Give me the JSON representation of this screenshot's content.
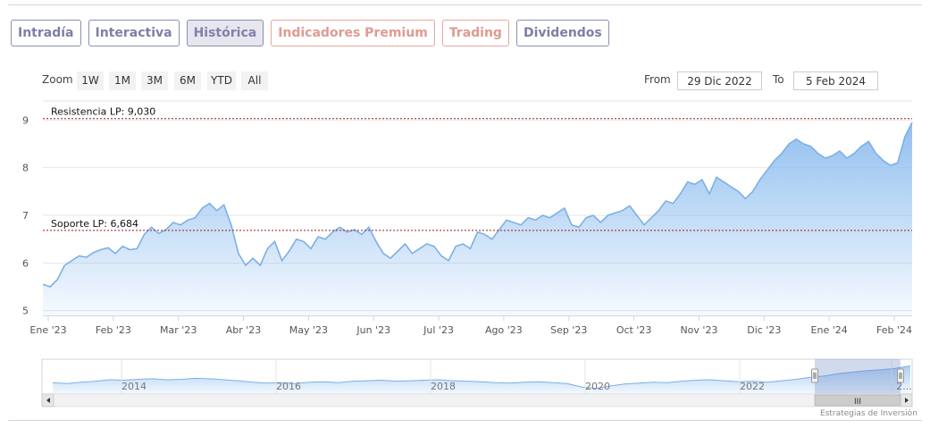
{
  "tabs": [
    {
      "label": "Intradía",
      "active": false,
      "premium": false
    },
    {
      "label": "Interactiva",
      "active": false,
      "premium": false
    },
    {
      "label": "Histórica",
      "active": true,
      "premium": false
    },
    {
      "label": "Indicadores Premium",
      "active": false,
      "premium": true
    },
    {
      "label": "Trading",
      "active": false,
      "premium": true
    },
    {
      "label": "Dividendos",
      "active": false,
      "premium": false
    }
  ],
  "range_selector": {
    "zoom_label": "Zoom",
    "buttons": [
      "1W",
      "1M",
      "3M",
      "6M",
      "YTD",
      "All"
    ],
    "from_label": "From",
    "from_value": "29 Dic 2022",
    "to_label": "To",
    "to_value": "5 Feb 2024"
  },
  "colors": {
    "line": "#7cb0e6",
    "fill_top": "#8cbcef",
    "plot_line": "#9b1c1c",
    "tab_border": "#8a8fb0",
    "tab_premium": "#e09a92"
  },
  "chart_data": {
    "type": "area",
    "title": "",
    "xlabel": "",
    "ylabel": "",
    "ylim": [
      4.9,
      9.4
    ],
    "y_ticks": [
      5,
      6,
      7,
      8,
      9
    ],
    "x_tick_labels": [
      "Ene '23",
      "Feb '23",
      "Mar '23",
      "Abr '23",
      "May '23",
      "Jun '23",
      "Jul '23",
      "Ago '23",
      "Sep '23",
      "Oct '23",
      "Nov '23",
      "Dic '23",
      "Ene '24",
      "Feb '24"
    ],
    "series": [
      {
        "values": [
          5.55,
          5.5,
          5.65,
          5.95,
          6.05,
          6.15,
          6.12,
          6.22,
          6.28,
          6.32,
          6.2,
          6.35,
          6.28,
          6.3,
          6.6,
          6.75,
          6.62,
          6.7,
          6.85,
          6.8,
          6.9,
          6.95,
          7.15,
          7.25,
          7.1,
          7.22,
          6.8,
          6.2,
          5.95,
          6.1,
          5.95,
          6.3,
          6.45,
          6.05,
          6.25,
          6.5,
          6.45,
          6.3,
          6.55,
          6.5,
          6.65,
          6.75,
          6.65,
          6.7,
          6.6,
          6.75,
          6.45,
          6.2,
          6.1,
          6.25,
          6.4,
          6.2,
          6.3,
          6.4,
          6.35,
          6.15,
          6.05,
          6.35,
          6.4,
          6.3,
          6.65,
          6.6,
          6.5,
          6.7,
          6.9,
          6.85,
          6.8,
          6.95,
          6.9,
          7.0,
          6.95,
          7.05,
          7.15,
          6.8,
          6.75,
          6.95,
          7.0,
          6.85,
          7.0,
          7.05,
          7.1,
          7.2,
          7.0,
          6.8,
          6.95,
          7.1,
          7.3,
          7.25,
          7.45,
          7.7,
          7.65,
          7.75,
          7.45,
          7.8,
          7.7,
          7.6,
          7.5,
          7.35,
          7.5,
          7.75,
          7.95,
          8.15,
          8.3,
          8.5,
          8.6,
          8.5,
          8.45,
          8.3,
          8.2,
          8.25,
          8.35,
          8.2,
          8.3,
          8.45,
          8.55,
          8.3,
          8.15,
          8.05,
          8.1,
          8.65,
          8.95
        ]
      }
    ],
    "plot_lines": [
      {
        "label": "Resistencia LP: 9,030",
        "value": 9.03
      },
      {
        "label": "Soporte LP: 6,684",
        "value": 6.684
      }
    ]
  },
  "navigator": {
    "year_labels": [
      "2014",
      "2016",
      "2018",
      "2020",
      "2022",
      "2..."
    ],
    "profile": [
      5.5,
      5.3,
      5.6,
      5.8,
      6.1,
      6.0,
      6.2,
      6.3,
      6.1,
      6.2,
      6.4,
      6.3,
      6.1,
      5.9,
      5.6,
      5.4,
      5.5,
      5.3,
      5.6,
      5.7,
      5.5,
      5.8,
      5.9,
      6.0,
      5.8,
      5.9,
      6.0,
      6.1,
      5.9,
      5.8,
      5.7,
      5.5,
      5.4,
      5.6,
      5.7,
      5.5,
      5.3,
      4.6,
      4.3,
      4.8,
      5.2,
      5.4,
      5.6,
      5.5,
      5.8,
      6.0,
      6.1,
      5.9,
      5.7,
      5.8,
      5.6,
      5.9,
      6.2,
      6.6,
      6.9,
      7.4,
      7.7,
      8.0,
      8.2,
      8.5,
      9.0
    ],
    "scrollbar_grip": "III"
  },
  "credit": "Estrategias de Inversión"
}
